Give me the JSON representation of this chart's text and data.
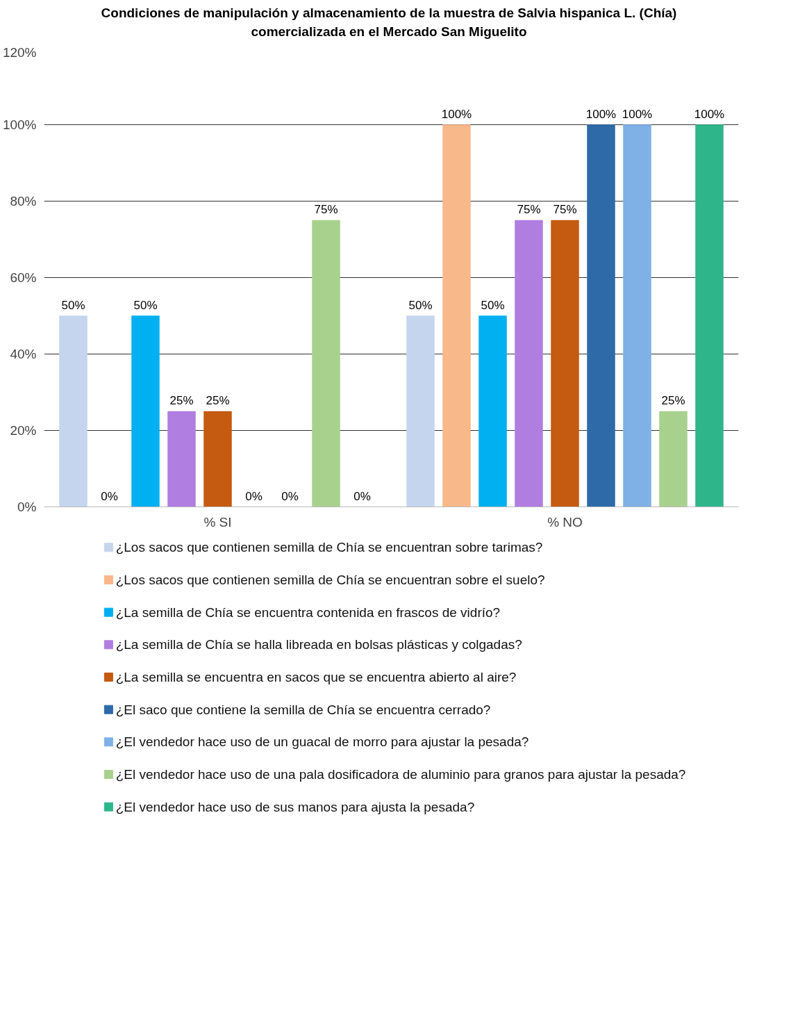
{
  "chart_data": {
    "type": "bar",
    "title": "Condiciones de manipulación y almacenamiento de la muestra de Salvia hispanica L. (Chía) comercializada en el Mercado San Miguelito",
    "categories": [
      "% SI",
      "% NO"
    ],
    "series": [
      {
        "name": "¿Los sacos que contienen semilla de Chía se encuentran sobre tarimas?",
        "color": "#c5d5ee",
        "values": [
          50,
          50
        ],
        "value_labels": [
          "50%",
          "50%"
        ]
      },
      {
        "name": "¿Los sacos que contienen semilla de Chía se encuentran sobre el suelo?",
        "color": "#f9b88a",
        "values": [
          0,
          100
        ],
        "value_labels": [
          "0%",
          "100%"
        ]
      },
      {
        "name": "¿La semilla de Chía se encuentra contenida en frascos de vidrío?",
        "color": "#00b0f0",
        "values": [
          50,
          50
        ],
        "value_labels": [
          "50%",
          "50%"
        ]
      },
      {
        "name": "¿La semilla de Chía se halla libreada en bolsas plásticas y colgadas?",
        "color": "#b07de0",
        "values": [
          25,
          75
        ],
        "value_labels": [
          "25%",
          "75%"
        ]
      },
      {
        "name": "¿La semilla se encuentra en sacos que se encuentra abierto al aire?",
        "color": "#c55a11",
        "values": [
          25,
          75
        ],
        "value_labels": [
          "25%",
          "75%"
        ]
      },
      {
        "name": "¿El saco que contiene la semilla de Chía se encuentra cerrado?",
        "color": "#2e6aa8",
        "values": [
          0,
          100
        ],
        "value_labels": [
          "0%",
          "100%"
        ]
      },
      {
        "name": "¿El vendedor hace uso de un guacal de morro para ajustar la pesada?",
        "color": "#7fb0e6",
        "values": [
          0,
          100
        ],
        "value_labels": [
          "0%",
          "100%"
        ]
      },
      {
        "name": "¿El vendedor hace uso de una pala dosificadora de aluminio para granos para ajustar la pesada?",
        "color": "#a9d18e",
        "values": [
          75,
          25
        ],
        "value_labels": [
          "75%",
          "25%"
        ]
      },
      {
        "name": "¿El vendedor hace uso de sus manos para ajusta la pesada?",
        "color": "#2fb58a",
        "values": [
          0,
          100
        ],
        "value_labels": [
          "0%",
          "100%"
        ]
      }
    ],
    "ylim": [
      0,
      120
    ],
    "yticks": [
      {
        "value": 0,
        "label": "0%"
      },
      {
        "value": 20,
        "label": "20%"
      },
      {
        "value": 40,
        "label": "40%"
      },
      {
        "value": 60,
        "label": "60%"
      },
      {
        "value": 80,
        "label": "80%"
      },
      {
        "value": 100,
        "label": "100%"
      },
      {
        "value": 120,
        "label": "120%"
      }
    ],
    "grid": "y",
    "legend": "bottom"
  }
}
